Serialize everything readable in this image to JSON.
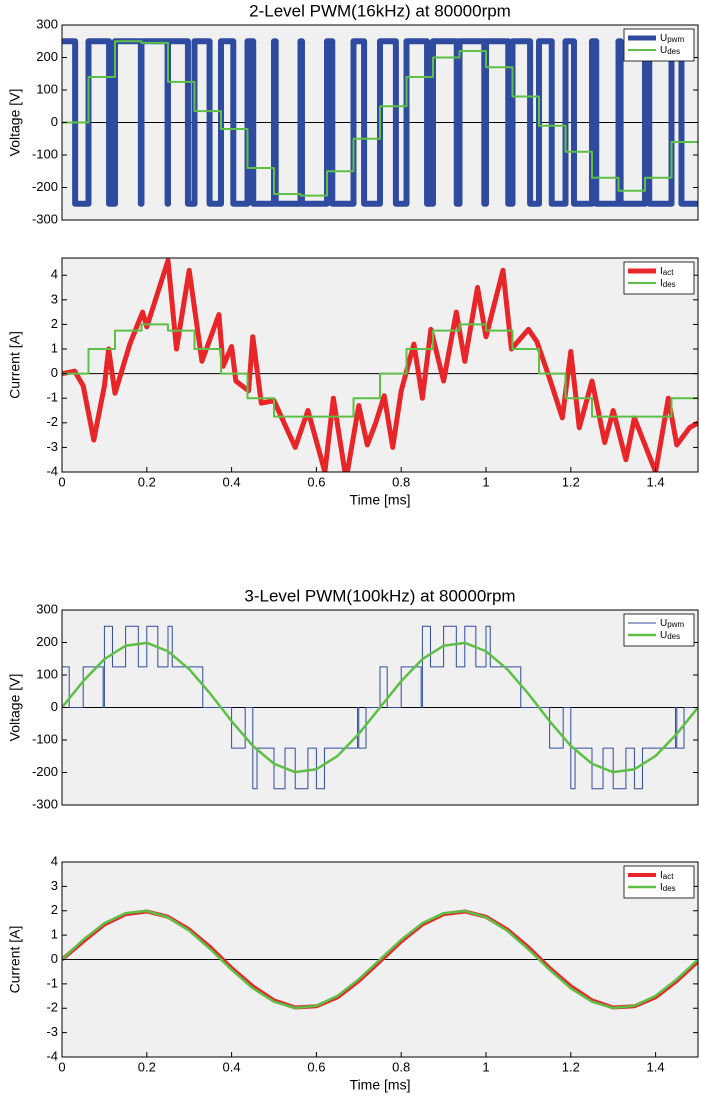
{
  "chart_data": [
    {
      "type": "line",
      "title": "2-Level PWM(16kHz) at 80000rpm",
      "ylabel": "Voltage [V]",
      "xlim": [
        0,
        1.5
      ],
      "ylim": [
        -300,
        300
      ],
      "yticks": [
        -300,
        -200,
        -100,
        0,
        100,
        200,
        300
      ],
      "legend": "upper right",
      "series": [
        {
          "name": "Upwm",
          "color": "#2f4b9f",
          "linewidth": 6,
          "drawstyle": "steps-post",
          "x": [
            0,
            0.031,
            0.0625,
            0.111,
            0.125,
            0.186,
            0.1875,
            0.249,
            0.25,
            0.297,
            0.3125,
            0.348,
            0.375,
            0.404,
            0.4375,
            0.451,
            0.5,
            0.504,
            0.5625,
            0.566,
            0.625,
            0.6375,
            0.6875,
            0.7125,
            0.75,
            0.7875,
            0.8125,
            0.861,
            0.875,
            0.931,
            0.9375,
            0.996,
            1.0,
            1.0525,
            1.0625,
            1.104,
            1.125,
            1.155,
            1.1875,
            1.2075,
            1.25,
            1.26,
            1.3125,
            1.3175,
            1.375,
            1.385,
            1.4375,
            1.461,
            1.5
          ],
          "values": [
            250,
            -250,
            250,
            -250,
            250,
            -250,
            250,
            -250,
            250,
            -250,
            250,
            -250,
            250,
            -250,
            250,
            -250,
            250,
            -250,
            250,
            -250,
            250,
            -250,
            250,
            -250,
            250,
            -250,
            250,
            -250,
            250,
            -250,
            250,
            -250,
            250,
            -250,
            250,
            -250,
            250,
            -250,
            250,
            -250,
            250,
            -250,
            250,
            -250,
            250,
            -250,
            250,
            -250,
            -250
          ]
        },
        {
          "name": "Udes",
          "color": "#5dbf45",
          "linewidth": 2,
          "drawstyle": "steps-post",
          "x": [
            0,
            0.0625,
            0.125,
            0.1875,
            0.25,
            0.3125,
            0.375,
            0.4375,
            0.5,
            0.5625,
            0.625,
            0.6875,
            0.75,
            0.8125,
            0.875,
            0.9375,
            1.0,
            1.0625,
            1.125,
            1.1875,
            1.25,
            1.3125,
            1.375,
            1.4375,
            1.5
          ],
          "values": [
            0,
            140,
            250,
            245,
            125,
            35,
            -20,
            -140,
            -220,
            -225,
            -150,
            -50,
            50,
            140,
            200,
            220,
            170,
            80,
            -10,
            -90,
            -170,
            -210,
            -170,
            -60,
            -60
          ]
        }
      ]
    },
    {
      "type": "line",
      "ylabel": "Current [A]",
      "xlabel": "Time [ms]",
      "xlim": [
        0,
        1.5
      ],
      "ylim": [
        -4,
        4.7
      ],
      "yticks": [
        -4,
        -3,
        -2,
        -1,
        0,
        1,
        2,
        3,
        4
      ],
      "xticks": [
        0,
        0.2,
        0.4,
        0.6,
        0.8,
        1,
        1.2,
        1.4
      ],
      "legend": "upper right",
      "series": [
        {
          "name": "Iact",
          "color": "#e82629",
          "linewidth": 5,
          "drawstyle": "default",
          "x": [
            0,
            0.03,
            0.05,
            0.075,
            0.1,
            0.11,
            0.125,
            0.16,
            0.19,
            0.2,
            0.25,
            0.27,
            0.3,
            0.33,
            0.37,
            0.38,
            0.4,
            0.41,
            0.44,
            0.45,
            0.47,
            0.5,
            0.55,
            0.58,
            0.62,
            0.64,
            0.67,
            0.7,
            0.72,
            0.74,
            0.76,
            0.78,
            0.8,
            0.83,
            0.85,
            0.87,
            0.9,
            0.93,
            0.95,
            0.98,
            1.0,
            1.04,
            1.06,
            1.1,
            1.12,
            1.15,
            1.18,
            1.2,
            1.22,
            1.25,
            1.28,
            1.3,
            1.33,
            1.35,
            1.4,
            1.43,
            1.45,
            1.48,
            1.5
          ],
          "values": [
            0,
            0.1,
            -0.5,
            -2.7,
            -0.5,
            1,
            -0.8,
            1.2,
            2.5,
            1.9,
            4.6,
            1,
            4.2,
            0.5,
            2.4,
            0.3,
            1.1,
            -0.3,
            -0.7,
            1.5,
            -1.2,
            -1.1,
            -3,
            -1.5,
            -4,
            -1,
            -4.3,
            -1.3,
            -2.9,
            -2,
            -0.9,
            -3,
            -0.7,
            1.2,
            -1,
            1.8,
            -0.3,
            2.5,
            0.5,
            3.5,
            1.5,
            4.2,
            1,
            1.8,
            1.3,
            -0.2,
            -1.8,
            0.9,
            -2.2,
            -0.3,
            -2.8,
            -1.5,
            -3.5,
            -1.8,
            -4,
            -1,
            -2.9,
            -2.2,
            -2
          ]
        },
        {
          "name": "Ides",
          "color": "#5dbf45",
          "linewidth": 2,
          "drawstyle": "steps-post",
          "x": [
            0,
            0.0625,
            0.125,
            0.1875,
            0.25,
            0.3125,
            0.375,
            0.4375,
            0.5,
            0.5625,
            0.625,
            0.6875,
            0.75,
            0.8125,
            0.875,
            0.9375,
            1.0,
            1.0625,
            1.125,
            1.1875,
            1.25,
            1.3125,
            1.375,
            1.4375,
            1.5
          ],
          "values": [
            0,
            1,
            1.75,
            2,
            1.75,
            1,
            0,
            -1,
            -1.75,
            -1.75,
            -1.75,
            -1,
            0,
            1,
            1.75,
            2,
            1.75,
            1,
            0,
            -1,
            -1.75,
            -1.75,
            -1.75,
            -1,
            -1
          ]
        }
      ]
    },
    {
      "type": "line",
      "title": "3-Level PWM(100kHz) at 80000rpm",
      "ylabel": "Voltage [V]",
      "xlim": [
        0,
        1.5
      ],
      "ylim": [
        -300,
        300
      ],
      "yticks": [
        -300,
        -200,
        -100,
        0,
        100,
        200,
        300
      ],
      "legend": "upper right",
      "series": [
        {
          "name": "Upwm",
          "color": "#2f4b9f",
          "linewidth": 1,
          "drawstyle": "steps-post",
          "x": [
            0,
            0.017,
            0.05,
            0.097,
            0.1,
            0.119,
            0.15,
            0.18,
            0.2,
            0.226,
            0.25,
            0.26,
            0.3,
            0.332,
            0.35,
            0.4,
            0.432,
            0.45,
            0.46,
            0.5,
            0.526,
            0.55,
            0.58,
            0.6,
            0.619,
            0.65,
            0.697,
            0.7,
            0.717,
            0.75,
            0.767,
            0.8,
            0.847,
            0.85,
            0.869,
            0.9,
            0.93,
            0.95,
            0.976,
            1.0,
            1.01,
            1.05,
            1.082,
            1.1,
            1.15,
            1.182,
            1.2,
            1.21,
            1.25,
            1.276,
            1.3,
            1.33,
            1.35,
            1.369,
            1.4,
            1.447,
            1.45,
            1.467,
            1.5
          ],
          "values": [
            125,
            0,
            125,
            0,
            250,
            125,
            250,
            125,
            250,
            125,
            250,
            125,
            125,
            0,
            0,
            -125,
            0,
            -250,
            -125,
            -250,
            -125,
            -250,
            -125,
            -250,
            -125,
            -125,
            0,
            -125,
            0,
            125,
            0,
            125,
            0,
            250,
            125,
            250,
            125,
            250,
            125,
            250,
            125,
            125,
            0,
            0,
            -125,
            0,
            -250,
            -125,
            -250,
            -125,
            -250,
            -125,
            -250,
            -125,
            -125,
            0,
            -125,
            0,
            0
          ]
        },
        {
          "name": "Udes",
          "color": "#5dbf45",
          "linewidth": 2.5,
          "drawstyle": "default",
          "x": [
            0,
            0.05,
            0.1,
            0.15,
            0.2,
            0.25,
            0.3,
            0.35,
            0.4,
            0.45,
            0.5,
            0.55,
            0.6,
            0.65,
            0.7,
            0.75,
            0.8,
            0.85,
            0.9,
            0.95,
            1.0,
            1.05,
            1.1,
            1.15,
            1.2,
            1.25,
            1.3,
            1.35,
            1.4,
            1.45,
            1.5
          ],
          "values": [
            0,
            81,
            149,
            190,
            199,
            173,
            118,
            42,
            -42,
            -118,
            -173,
            -199,
            -190,
            -149,
            -81,
            0,
            81,
            149,
            190,
            199,
            173,
            118,
            42,
            -42,
            -118,
            -173,
            -199,
            -190,
            -149,
            -81,
            0
          ]
        }
      ]
    },
    {
      "type": "line",
      "ylabel": "Current [A]",
      "xlabel": "Time [ms]",
      "xlim": [
        0,
        1.5
      ],
      "ylim": [
        -4,
        4
      ],
      "yticks": [
        -4,
        -3,
        -2,
        -1,
        0,
        1,
        2,
        3,
        4
      ],
      "xticks": [
        0,
        0.2,
        0.4,
        0.6,
        0.8,
        1,
        1.2,
        1.4
      ],
      "legend": "upper right",
      "series": [
        {
          "name": "Iact",
          "color": "#e82629",
          "linewidth": 4,
          "drawstyle": "default",
          "x": [
            0,
            0.05,
            0.1,
            0.15,
            0.2,
            0.25,
            0.3,
            0.35,
            0.4,
            0.45,
            0.5,
            0.55,
            0.6,
            0.65,
            0.7,
            0.75,
            0.8,
            0.85,
            0.9,
            0.95,
            1.0,
            1.05,
            1.1,
            1.15,
            1.2,
            1.25,
            1.3,
            1.35,
            1.4,
            1.45,
            1.5
          ],
          "values": [
            0,
            0.74,
            1.44,
            1.86,
            1.97,
            1.75,
            1.23,
            0.5,
            -0.35,
            -1.1,
            -1.68,
            -1.97,
            -1.92,
            -1.55,
            -0.88,
            -0.08,
            0.74,
            1.44,
            1.86,
            1.97,
            1.75,
            1.23,
            0.5,
            -0.35,
            -1.1,
            -1.68,
            -1.97,
            -1.92,
            -1.55,
            -0.88,
            -0.08
          ]
        },
        {
          "name": "Ides",
          "color": "#5dbf45",
          "linewidth": 2.5,
          "drawstyle": "default",
          "x": [
            0,
            0.05,
            0.1,
            0.15,
            0.2,
            0.25,
            0.3,
            0.35,
            0.4,
            0.45,
            0.5,
            0.55,
            0.6,
            0.65,
            0.7,
            0.75,
            0.8,
            0.85,
            0.9,
            0.95,
            1.0,
            1.05,
            1.1,
            1.15,
            1.2,
            1.25,
            1.3,
            1.35,
            1.4,
            1.45,
            1.5
          ],
          "values": [
            0,
            0.81,
            1.49,
            1.9,
            1.99,
            1.73,
            1.18,
            0.42,
            -0.42,
            -1.18,
            -1.73,
            -1.99,
            -1.9,
            -1.49,
            -0.81,
            0,
            0.81,
            1.49,
            1.9,
            1.99,
            1.73,
            1.18,
            0.42,
            -0.42,
            -1.18,
            -1.73,
            -1.99,
            -1.9,
            -1.49,
            -0.81,
            0
          ]
        }
      ]
    }
  ]
}
